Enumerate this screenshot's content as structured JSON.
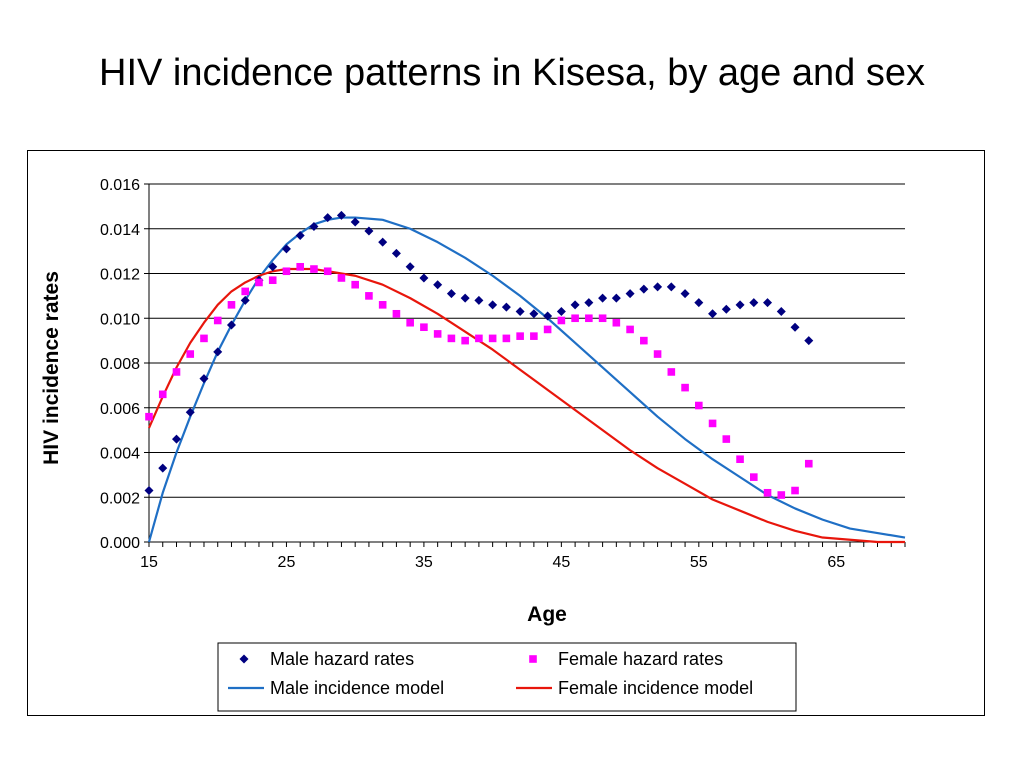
{
  "slide": {
    "title": "HIV incidence patterns in Kisesa, by age and sex"
  },
  "colors": {
    "male_points": "#000080",
    "female_points": "#ff00ff",
    "male_line": "#1f6fc5",
    "female_line": "#e8160c",
    "grid": "#000000"
  },
  "chart_data": {
    "type": "scatter",
    "title": "HIV incidence patterns in Kisesa, by age and sex",
    "xlabel": "Age",
    "ylabel": "HIV incidence rates",
    "xlim": [
      15,
      70
    ],
    "ylim": [
      0,
      0.016
    ],
    "x_ticks": [
      15,
      25,
      35,
      45,
      55,
      65
    ],
    "x_tick_labels": [
      "15",
      "25",
      "35",
      "45",
      "55",
      "65"
    ],
    "y_ticks": [
      0,
      0.002,
      0.004,
      0.006,
      0.008,
      0.01,
      0.012,
      0.014,
      0.016
    ],
    "y_tick_labels": [
      "0.000",
      "0.002",
      "0.004",
      "0.006",
      "0.008",
      "0.010",
      "0.012",
      "0.014",
      "0.016"
    ],
    "grid": "horizontal",
    "legend_position": "bottom",
    "series": [
      {
        "name": "Male hazard rates",
        "kind": "points",
        "marker": "diamond",
        "x": [
          15,
          16,
          17,
          18,
          19,
          20,
          21,
          22,
          23,
          24,
          25,
          26,
          27,
          28,
          29,
          30,
          31,
          32,
          33,
          34,
          35,
          36,
          37,
          38,
          39,
          40,
          41,
          42,
          43,
          44,
          45,
          46,
          47,
          48,
          49,
          50,
          51,
          52,
          53,
          54,
          55,
          56,
          57,
          58,
          59,
          60,
          61,
          62,
          63
        ],
        "y": [
          0.0023,
          0.0033,
          0.0046,
          0.0058,
          0.0073,
          0.0085,
          0.0097,
          0.0108,
          0.0117,
          0.0123,
          0.0131,
          0.0137,
          0.0141,
          0.0145,
          0.0146,
          0.0143,
          0.0139,
          0.0134,
          0.0129,
          0.0123,
          0.0118,
          0.0115,
          0.0111,
          0.0109,
          0.0108,
          0.0106,
          0.0105,
          0.0103,
          0.0102,
          0.0101,
          0.0103,
          0.0106,
          0.0107,
          0.0109,
          0.0109,
          0.0111,
          0.0113,
          0.0114,
          0.0114,
          0.0111,
          0.0107,
          0.0102,
          0.0104,
          0.0106,
          0.0107,
          0.0107,
          0.0103,
          0.0096,
          0.009
        ]
      },
      {
        "name": "Female hazard rates",
        "kind": "points",
        "marker": "square",
        "x": [
          15,
          16,
          17,
          18,
          19,
          20,
          21,
          22,
          23,
          24,
          25,
          26,
          27,
          28,
          29,
          30,
          31,
          32,
          33,
          34,
          35,
          36,
          37,
          38,
          39,
          40,
          41,
          42,
          43,
          44,
          45,
          46,
          47,
          48,
          49,
          50,
          51,
          52,
          53,
          54,
          55,
          56,
          57,
          58,
          59,
          60,
          61,
          62,
          63
        ],
        "y": [
          0.0056,
          0.0066,
          0.0076,
          0.0084,
          0.0091,
          0.0099,
          0.0106,
          0.0112,
          0.0116,
          0.0117,
          0.0121,
          0.0123,
          0.0122,
          0.0121,
          0.0118,
          0.0115,
          0.011,
          0.0106,
          0.0102,
          0.0098,
          0.0096,
          0.0093,
          0.0091,
          0.009,
          0.0091,
          0.0091,
          0.0091,
          0.0092,
          0.0092,
          0.0095,
          0.0099,
          0.01,
          0.01,
          0.01,
          0.0098,
          0.0095,
          0.009,
          0.0084,
          0.0076,
          0.0069,
          0.0061,
          0.0053,
          0.0046,
          0.0037,
          0.0029,
          0.0022,
          0.0021,
          0.0023,
          0.0035
        ]
      },
      {
        "name": "Male incidence model",
        "kind": "line",
        "x": [
          15,
          16,
          17,
          18,
          19,
          20,
          21,
          22,
          23,
          24,
          25,
          26,
          27,
          28,
          29,
          30,
          32,
          34,
          36,
          38,
          40,
          42,
          44,
          46,
          48,
          50,
          52,
          54,
          56,
          58,
          60,
          62,
          64,
          66,
          68,
          70
        ],
        "y": [
          0,
          0.0022,
          0.004,
          0.0056,
          0.0071,
          0.0085,
          0.0097,
          0.0108,
          0.0118,
          0.0126,
          0.0133,
          0.0138,
          0.0142,
          0.0144,
          0.0145,
          0.0145,
          0.0144,
          0.014,
          0.0134,
          0.0127,
          0.0119,
          0.011,
          0.01,
          0.0089,
          0.0078,
          0.0067,
          0.0056,
          0.0046,
          0.0037,
          0.0029,
          0.0021,
          0.0015,
          0.001,
          0.0006,
          0.0004,
          0.0002
        ]
      },
      {
        "name": "Female incidence model",
        "kind": "line",
        "x": [
          15,
          16,
          17,
          18,
          19,
          20,
          21,
          22,
          23,
          24,
          25,
          26,
          27,
          28,
          29,
          30,
          32,
          34,
          36,
          38,
          40,
          42,
          44,
          46,
          48,
          50,
          52,
          54,
          56,
          58,
          60,
          62,
          64,
          66,
          68,
          70
        ],
        "y": [
          0.0051,
          0.0065,
          0.0078,
          0.0089,
          0.0098,
          0.0106,
          0.0112,
          0.0116,
          0.0119,
          0.0121,
          0.0122,
          0.0122,
          0.0122,
          0.0121,
          0.012,
          0.0119,
          0.0115,
          0.0109,
          0.0102,
          0.0094,
          0.0086,
          0.0077,
          0.0068,
          0.0059,
          0.005,
          0.0041,
          0.0033,
          0.0026,
          0.0019,
          0.0014,
          0.0009,
          0.0005,
          0.0002,
          0.0001,
          0,
          0
        ]
      }
    ]
  }
}
